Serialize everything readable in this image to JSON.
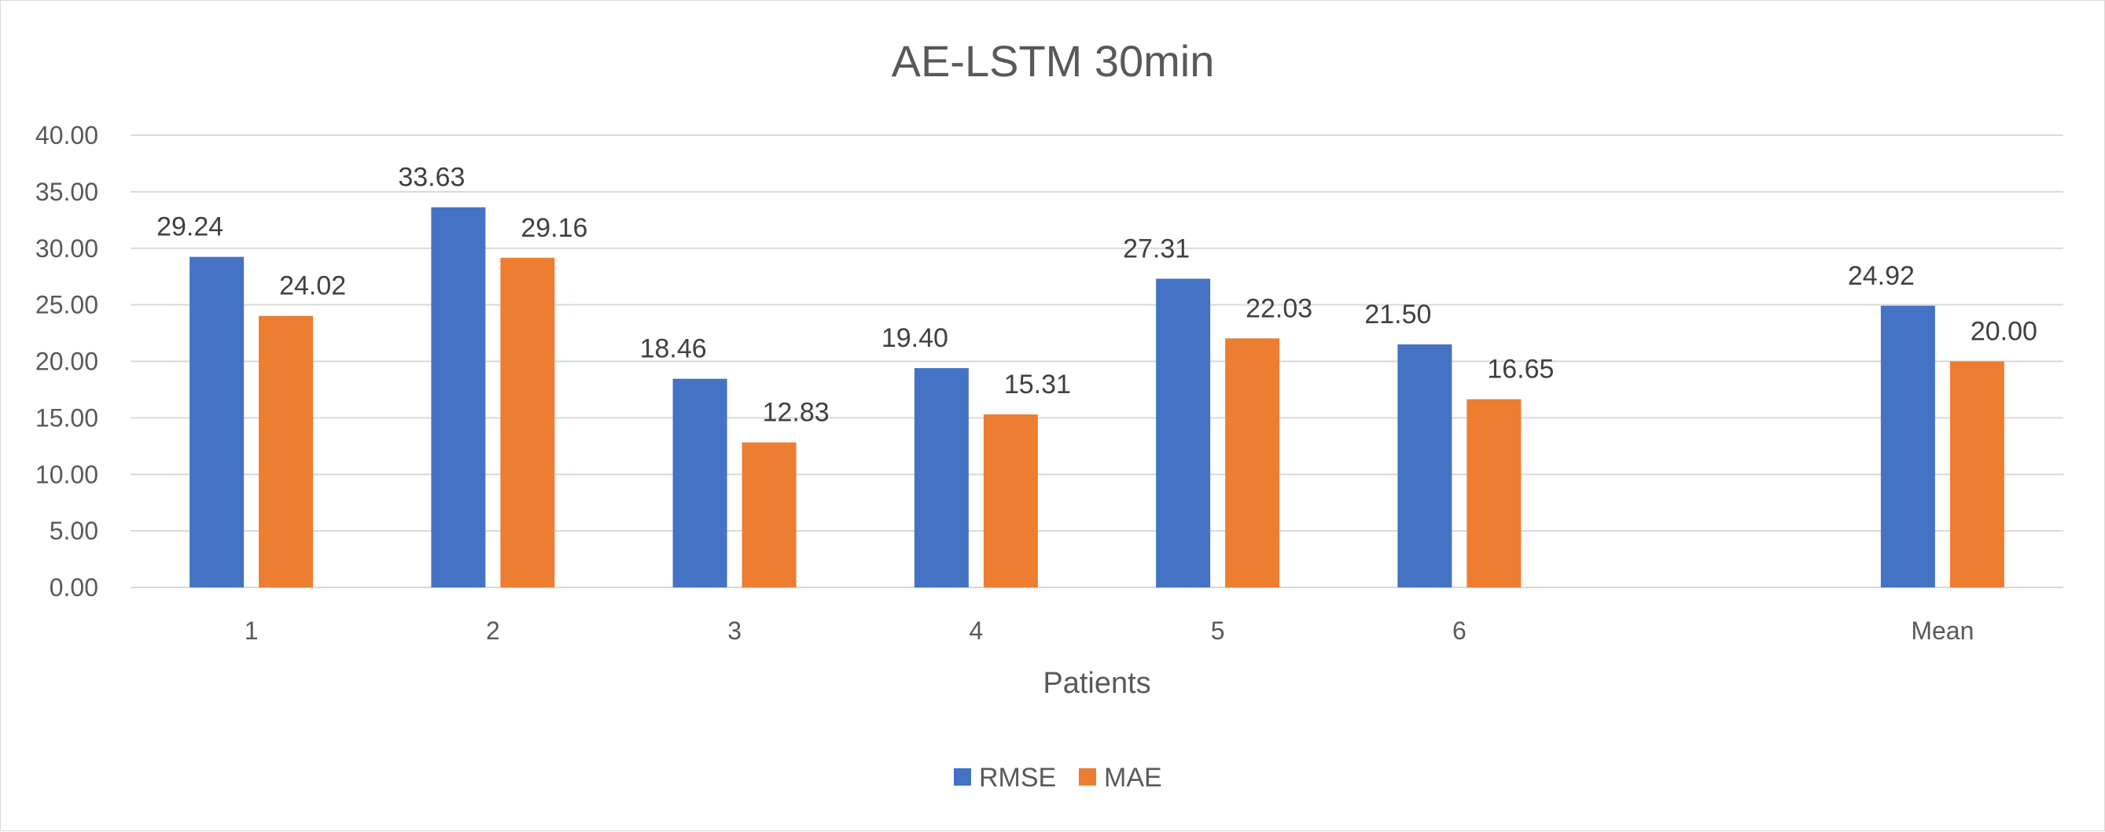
{
  "chart_data": {
    "type": "bar",
    "title": "AE-LSTM 30min",
    "xlabel": "Patients",
    "ylabel": "",
    "categories": [
      "1",
      "2",
      "3",
      "4",
      "5",
      "6",
      "",
      "Mean"
    ],
    "series": [
      {
        "name": "RMSE",
        "color": "#4472C4",
        "values": [
          29.24,
          33.63,
          18.46,
          19.4,
          27.31,
          21.5,
          null,
          24.92
        ],
        "labels": [
          "29.24",
          "33.63",
          "18.46",
          "19.40",
          "27.31",
          "21.50",
          "",
          "24.92"
        ]
      },
      {
        "name": "MAE",
        "color": "#ED7D31",
        "values": [
          24.02,
          29.16,
          12.83,
          15.31,
          22.03,
          16.65,
          null,
          20.0
        ],
        "labels": [
          "24.02",
          "29.16",
          "12.83",
          "15.31",
          "22.03",
          "16.65",
          "",
          "20.00"
        ]
      }
    ],
    "ylim": [
      0,
      40
    ],
    "yticks": [
      "0.00",
      "5.00",
      "10.00",
      "15.00",
      "20.00",
      "25.00",
      "30.00",
      "35.00",
      "40.00"
    ],
    "grid": true,
    "legend_position": "bottom"
  }
}
